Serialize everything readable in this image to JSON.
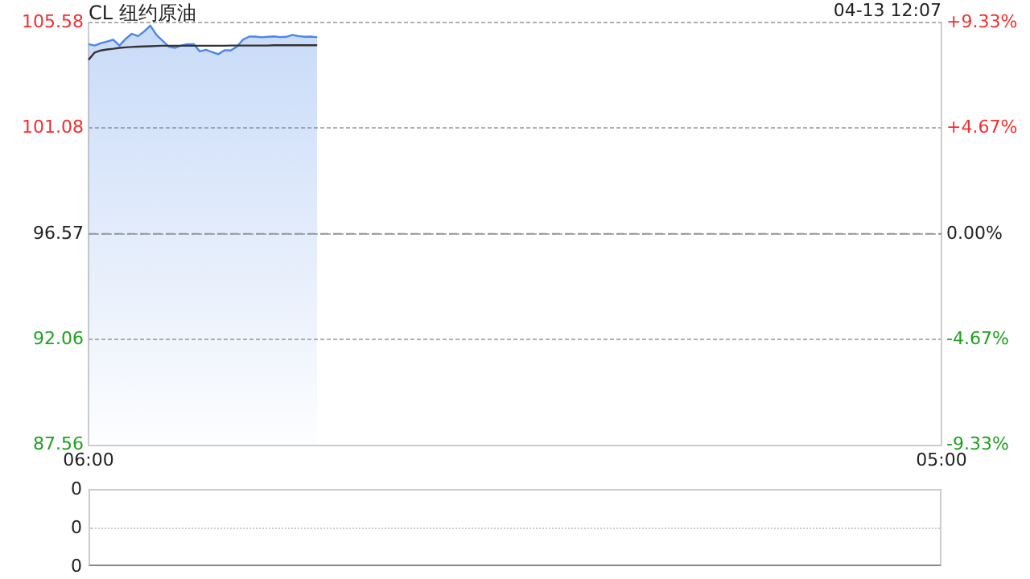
{
  "chart_data": [
    {
      "type": "line",
      "title": "CL 纽约原油",
      "annotations": [
        "04-13 12:07"
      ],
      "categories": [
        "06:00",
        null,
        null,
        null,
        null,
        null,
        null,
        null,
        null,
        null,
        null,
        null,
        null,
        null,
        null,
        null,
        null,
        null,
        null,
        null,
        null,
        null,
        null,
        null,
        null,
        null,
        null,
        null,
        null,
        null,
        null,
        null,
        null,
        null,
        null,
        null,
        null,
        null,
        null,
        null,
        null,
        null,
        null,
        null,
        null,
        null,
        null,
        null,
        null,
        null,
        null,
        null,
        null,
        null,
        null,
        null,
        null,
        null,
        null,
        null,
        null,
        null,
        null,
        null,
        null,
        null,
        null,
        null,
        null,
        null,
        null,
        null,
        null,
        null,
        null,
        null,
        null,
        null,
        null,
        null,
        null,
        null,
        null,
        null,
        null,
        null,
        null,
        null,
        null,
        null,
        null,
        null,
        null,
        null,
        null,
        null,
        null,
        null,
        null,
        null,
        null,
        null,
        null,
        null,
        null,
        null,
        null,
        null,
        null,
        null,
        null,
        null,
        null,
        null,
        null,
        null,
        null,
        null,
        null,
        null,
        null,
        null,
        null,
        null,
        null,
        null,
        null,
        null,
        null,
        null,
        null,
        null,
        null,
        null,
        null,
        null,
        null,
        null,
        "05:00"
      ],
      "ylim": [
        87.56,
        105.58
      ],
      "yticks": [
        87.56,
        92.06,
        96.57,
        101.08,
        105.58
      ],
      "y2lim": [
        -9.33,
        9.33
      ],
      "y2ticks": [
        {
          "value": -9.33,
          "label": "-9.33%"
        },
        {
          "value": -4.67,
          "label": "-4.67%"
        },
        {
          "value": 0,
          "label": "0.00%"
        },
        {
          "value": 4.67,
          "label": "+4.67%"
        },
        {
          "value": 9.33,
          "label": "+9.33%"
        }
      ],
      "grid": "y",
      "legend": false,
      "marker": "none",
      "ref_lines": [
        {
          "axis": "y",
          "value": 96.57,
          "line_style": "dashed",
          "color": "#999999"
        }
      ],
      "series": [
        {
          "type": "area",
          "color": "#4a86e8",
          "values": [
            104.66,
            104.6,
            104.7,
            104.77,
            104.85,
            104.6,
            104.88,
            105.1,
            105.0,
            105.2,
            105.45,
            105.05,
            104.8,
            104.55,
            104.5,
            104.6,
            104.66,
            104.66,
            104.35,
            104.42,
            104.32,
            104.23,
            104.4,
            104.39,
            104.55,
            104.85,
            104.98,
            104.98,
            104.95,
            104.97,
            104.99,
            104.96,
            104.97,
            105.05,
            105.0,
            104.97,
            104.98,
            104.95,
            null,
            null,
            null,
            null,
            null,
            null,
            null,
            null,
            null,
            null,
            null,
            null,
            null,
            null,
            null,
            null,
            null,
            null,
            null,
            null,
            null,
            null,
            null,
            null,
            null,
            null,
            null,
            null,
            null,
            null,
            null,
            null,
            null,
            null,
            null,
            null,
            null,
            null,
            null,
            null,
            null,
            null,
            null,
            null,
            null,
            null,
            null,
            null,
            null,
            null,
            null,
            null,
            null,
            null,
            null,
            null,
            null,
            null,
            null,
            null,
            null,
            null,
            null,
            null,
            null,
            null,
            null,
            null,
            null,
            null,
            null,
            null,
            null,
            null,
            null,
            null,
            null,
            null,
            null,
            null,
            null,
            null,
            null,
            null,
            null,
            null,
            null,
            null,
            null,
            null,
            null,
            null,
            null,
            null,
            null,
            null,
            null,
            null,
            null,
            null,
            null
          ]
        },
        {
          "color": "#333333",
          "values": [
            103.99,
            104.3,
            104.39,
            104.43,
            104.46,
            104.5,
            104.52,
            104.54,
            104.55,
            104.56,
            104.57,
            104.58,
            104.59,
            104.59,
            104.59,
            104.59,
            104.59,
            104.59,
            104.59,
            104.59,
            104.59,
            104.59,
            104.59,
            104.6,
            104.6,
            104.6,
            104.6,
            104.6,
            104.6,
            104.6,
            104.61,
            104.61,
            104.61,
            104.61,
            104.61,
            104.61,
            104.61,
            104.61,
            null,
            null,
            null,
            null,
            null,
            null,
            null,
            null,
            null,
            null,
            null,
            null,
            null,
            null,
            null,
            null,
            null,
            null,
            null,
            null,
            null,
            null,
            null,
            null,
            null,
            null,
            null,
            null,
            null,
            null,
            null,
            null,
            null,
            null,
            null,
            null,
            null,
            null,
            null,
            null,
            null,
            null,
            null,
            null,
            null,
            null,
            null,
            null,
            null,
            null,
            null,
            null,
            null,
            null,
            null,
            null,
            null,
            null,
            null,
            null,
            null,
            null,
            null,
            null,
            null,
            null,
            null,
            null,
            null,
            null,
            null,
            null,
            null,
            null,
            null,
            null,
            null,
            null,
            null,
            null,
            null,
            null,
            null,
            null,
            null,
            null,
            null,
            null,
            null,
            null,
            null,
            null,
            null,
            null,
            null,
            null,
            null,
            null,
            null,
            null,
            null
          ]
        }
      ]
    },
    {
      "type": "other",
      "annotations": [
        "0",
        "0",
        "0"
      ]
    }
  ]
}
